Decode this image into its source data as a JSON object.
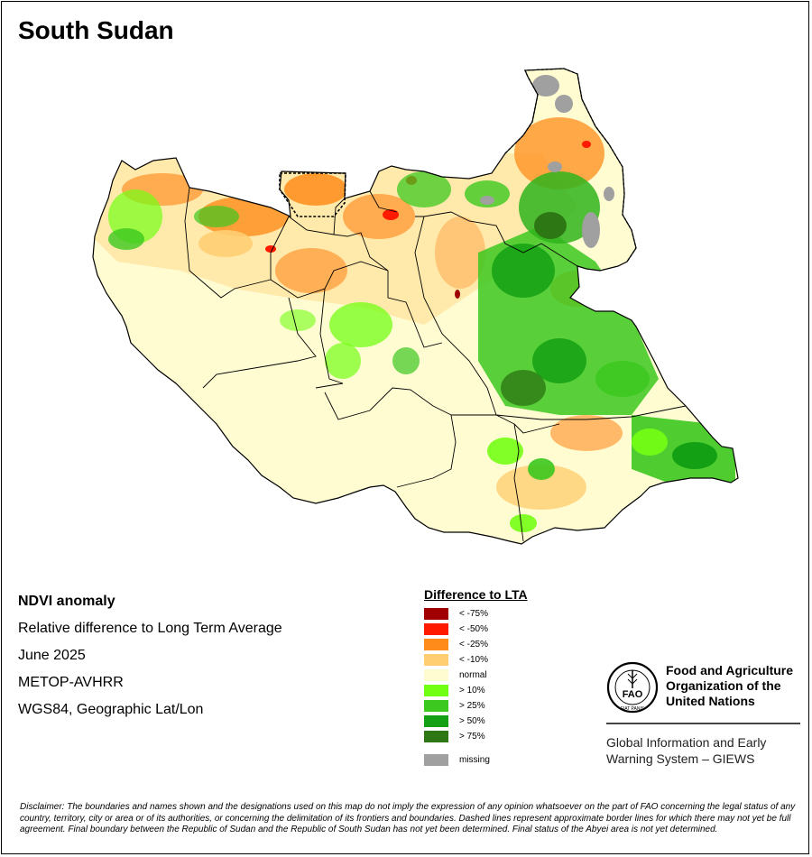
{
  "title": "South Sudan",
  "info": {
    "product": "NDVI anomaly",
    "description": "Relative difference to Long Term Average",
    "period": "June 2025",
    "sensor": "METOP-AVHRR",
    "projection": "WGS84, Geographic Lat/Lon"
  },
  "legend": {
    "title": "Difference to LTA",
    "items": [
      {
        "label": "< -75%",
        "color": "#a00000"
      },
      {
        "label": "< -50%",
        "color": "#ff1a00"
      },
      {
        "label": "< -25%",
        "color": "#ff8c1a"
      },
      {
        "label": "< -10%",
        "color": "#ffce73"
      },
      {
        "label": "normal",
        "color": "#fffcd2"
      },
      {
        "label": "> 10%",
        "color": "#73ff14"
      },
      {
        "label": "> 25%",
        "color": "#3cc81e"
      },
      {
        "label": "> 50%",
        "color": "#14a014"
      },
      {
        "label": "> 75%",
        "color": "#2d7814"
      }
    ],
    "missing": {
      "label": "missing",
      "color": "#a0a0a0"
    }
  },
  "organization": {
    "name_line1": "Food and Agriculture",
    "name_line2": "Organization of the",
    "name_line3": "United Nations",
    "logo_text": "FAO",
    "logo_motto": "FIAT PANIS",
    "system_line1": "Global Information and Early",
    "system_line2": "Warning System – GIEWS"
  },
  "disclaimer": "Disclaimer: The boundaries and names shown and the designations used on this map do not imply the expression of any opinion whatsoever on the part of FAO concerning the legal status of any country, territory, city or area or of its authorities, or concerning the delimitation of its frontiers and boundaries. Dashed lines represent approximate border lines for which there may not yet be full agreement.  Final boundary between the Republic of Sudan and the Republic of South Sudan has not yet been determined. Final status of the Abyei area is not yet determined."
}
